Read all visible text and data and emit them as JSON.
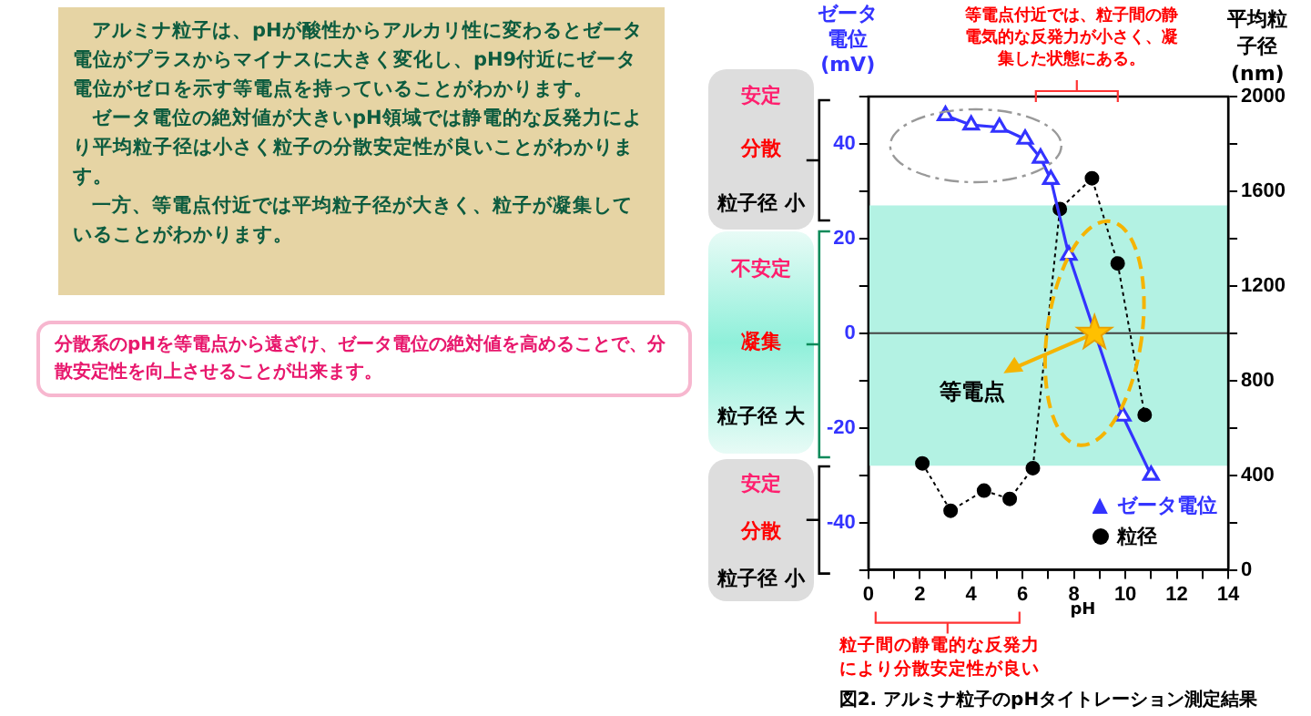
{
  "chart_data": {
    "type": "line",
    "title": "図2. アルミナ粒子のpHタイトレーション測定結果",
    "xlabel": "pH",
    "ylabel": "ゼータ電位(mV)",
    "y2label": "平均粒子径(nm)",
    "annotations": [
      "アルミナ粒子は、pHが酸性からアルカリ性に変わるとゼータ電位がプラスからマイナスに大きく変化し、pH9付近にゼータ電位がゼロを示す等電点を持っていることがわかります。",
      "ゼータ電位の絶対値が大きいpH領域では静電的な反発力により平均粒子径は小さく粒子の分散安定性が良いことがわかります。",
      "一方、等電点付近では平均粒子径が大きく、粒子が凝集していることがわかります。",
      "分散系のpHを等電点から遠ざけ、ゼータ電位の絶対値を高めることで、分散安定性を向上させることが出来ます。",
      "等電点付近では、粒子間の静電気的な反発力が小さく、凝集した状態にある。",
      "粒子間の静電的な反発力により分散安定性が良い",
      "安定",
      "分散",
      "粒子径 小",
      "不安定",
      "凝集",
      "粒子径 大",
      "安定",
      "分散",
      "粒子径 小",
      {
        "text": "等電点",
        "x": 8.8,
        "y": 0
      }
    ],
    "series": [
      {
        "name": "ゼータ電位",
        "color": "#3333ff",
        "axis": "y",
        "marker": "triangle",
        "line_style": "solid",
        "x": [
          3,
          4,
          5.1,
          6.1,
          6.7,
          7.1,
          7.8,
          9.9,
          11
        ],
        "values": [
          46,
          44,
          43.5,
          41,
          37,
          32.5,
          16.5,
          -17.5,
          -30
        ]
      },
      {
        "name": "粒径",
        "color": "#000000",
        "axis": "y2",
        "marker": "circle",
        "line_style": "dotted",
        "x": [
          2.1,
          3.2,
          4.5,
          5.5,
          6.4,
          7.45,
          8.7,
          9.7,
          10.75
        ],
        "values": [
          450,
          250,
          335,
          300,
          430,
          1525,
          1655,
          1295,
          655
        ]
      }
    ],
    "xlim": [
      0,
      14
    ],
    "xticks": [
      0,
      {
        "value": 1,
        "label": null
      },
      2,
      {
        "value": 3,
        "label": null
      },
      4,
      {
        "value": 5,
        "label": null
      },
      6,
      {
        "value": 7,
        "label": null
      },
      8,
      {
        "value": 9,
        "label": null
      },
      10,
      {
        "value": 11,
        "label": null
      },
      12,
      {
        "value": 13,
        "label": null
      },
      14
    ],
    "ylim": [
      -50,
      50
    ],
    "yticks": [
      {
        "value": -50,
        "label": null
      },
      -40,
      {
        "value": -30,
        "label": null
      },
      -20,
      {
        "value": -10,
        "label": null
      },
      0,
      {
        "value": 10,
        "label": null
      },
      20,
      {
        "value": 30,
        "label": null
      },
      40,
      {
        "value": 50,
        "label": null
      }
    ],
    "y2lim": [
      0,
      2000
    ],
    "y2ticks": [
      0,
      {
        "value": 200,
        "label": null
      },
      400,
      {
        "value": 600,
        "label": null
      },
      800,
      {
        "value": 1000,
        "label": null
      },
      1200,
      {
        "value": 1400,
        "label": null
      },
      1600,
      {
        "value": 1800,
        "label": null
      },
      2000
    ],
    "bands": [
      {
        "axis": "y",
        "from": -28,
        "to": 27,
        "color": "#b3f2e3"
      }
    ],
    "ref_lines": [
      {
        "axis": "y",
        "value": 0,
        "color": "#444444"
      }
    ],
    "grid": false,
    "legend": "bottom right"
  }
}
